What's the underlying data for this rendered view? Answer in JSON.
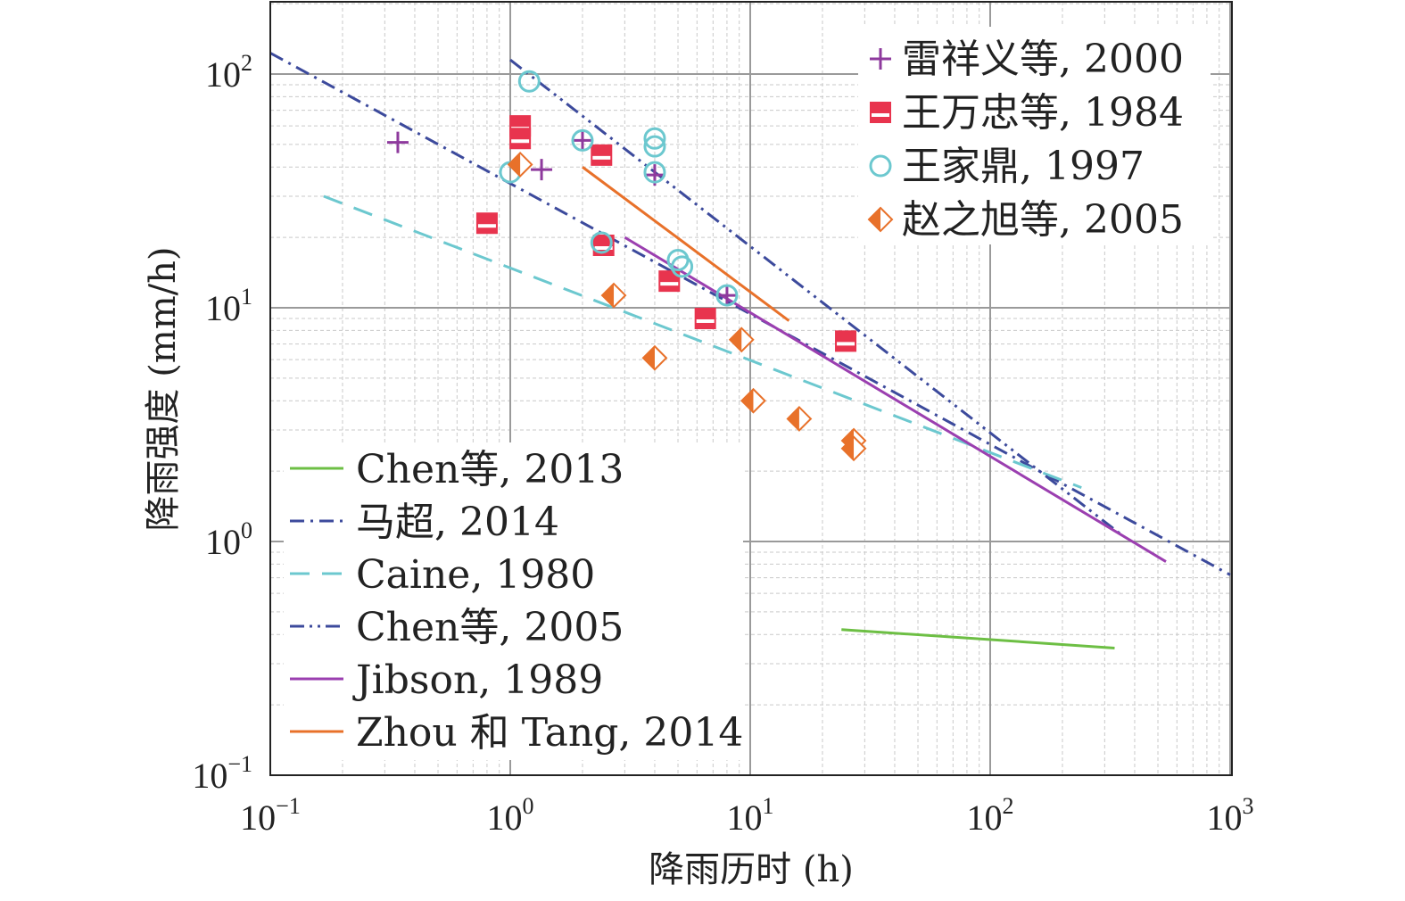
{
  "chart_data": {
    "type": "scatter",
    "xscale": "log",
    "yscale": "log",
    "xlim": [
      0.1,
      1000
    ],
    "ylim": [
      0.1,
      200
    ],
    "grid": true,
    "xlabel": "降雨历时 (h)",
    "ylabel": "降雨强度 (mm/h)",
    "x_ticks": [
      {
        "base": "10",
        "exp": "−1"
      },
      {
        "base": "10",
        "exp": "0"
      },
      {
        "base": "10",
        "exp": "1"
      },
      {
        "base": "10",
        "exp": "2"
      },
      {
        "base": "10",
        "exp": "3"
      }
    ],
    "y_ticks": [
      {
        "base": "10",
        "exp": "−1"
      },
      {
        "base": "10",
        "exp": "0"
      },
      {
        "base": "10",
        "exp": "1"
      },
      {
        "base": "10",
        "exp": "2"
      }
    ],
    "point_series": [
      {
        "name": "雷祥义等, 2000",
        "marker": "plus",
        "color": "#8e3a9d",
        "points": [
          [
            0.34,
            51
          ],
          [
            1.35,
            39
          ],
          [
            2.0,
            52
          ],
          [
            4.0,
            37
          ],
          [
            8.0,
            11.3
          ]
        ]
      },
      {
        "name": "王万忠等, 1984",
        "marker": "half-square",
        "color": "#e8344e",
        "points": [
          [
            0.8,
            23
          ],
          [
            1.1,
            60
          ],
          [
            1.1,
            53
          ],
          [
            2.4,
            45
          ],
          [
            2.45,
            18.5
          ],
          [
            4.6,
            13
          ],
          [
            6.5,
            9
          ],
          [
            25,
            7.2
          ]
        ]
      },
      {
        "name": "王家鼎, 1997",
        "marker": "circle",
        "color": "#6cc8cf",
        "points": [
          [
            1.2,
            93
          ],
          [
            1.0,
            38
          ],
          [
            2.0,
            52
          ],
          [
            2.4,
            19
          ],
          [
            4.0,
            53
          ],
          [
            4.0,
            49
          ],
          [
            4.0,
            38
          ],
          [
            5.0,
            16
          ],
          [
            5.2,
            15
          ],
          [
            8.0,
            11.3
          ]
        ]
      },
      {
        "name": "赵之旭等, 2005",
        "marker": "half-diamond",
        "color": "#e8712a",
        "points": [
          [
            1.1,
            41
          ],
          [
            2.7,
            11.3
          ],
          [
            4.0,
            6.1
          ],
          [
            9.2,
            7.3
          ],
          [
            10.3,
            4.0
          ],
          [
            16,
            3.35
          ],
          [
            27,
            2.7
          ],
          [
            27,
            2.5
          ]
        ]
      }
    ],
    "line_series": [
      {
        "name": "Chen等, 2013",
        "color": "#6dbf44",
        "dash": "solid",
        "x": [
          24,
          330
        ],
        "y": [
          0.42,
          0.35
        ]
      },
      {
        "name": "马超, 2014",
        "color": "#3c4a9c",
        "dash": "dashdot",
        "x": [
          0.1,
          1000
        ],
        "y": [
          123,
          0.72
        ]
      },
      {
        "name": "Caine, 1980",
        "color": "#6cc8cf",
        "dash": "dash",
        "x": [
          0.167,
          240
        ],
        "y": [
          30,
          1.7
        ]
      },
      {
        "name": "Chen等, 2005",
        "color": "#3c4a9c",
        "dash": "dashdotdot",
        "x": [
          1.0,
          360
        ],
        "y": [
          115,
          1.05
        ]
      },
      {
        "name": "Jibson, 1989",
        "color": "#9b3fb0",
        "dash": "solid",
        "x": [
          3.0,
          540
        ],
        "y": [
          20,
          0.82
        ]
      },
      {
        "name": "Zhou 和 Tang, 2014",
        "color": "#e8712a",
        "dash": "solid",
        "x": [
          2.0,
          14.5
        ],
        "y": [
          40,
          8.8
        ]
      }
    ]
  }
}
